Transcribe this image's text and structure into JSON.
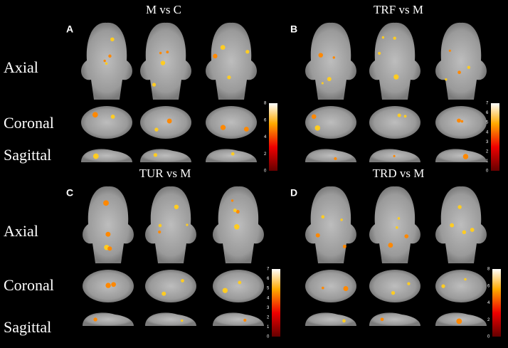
{
  "panels": [
    {
      "label": "A",
      "title": "M vs C",
      "colorbar_ticks": [
        0,
        2,
        4,
        6,
        8
      ]
    },
    {
      "label": "B",
      "title": "TRF vs M",
      "colorbar_ticks": [
        0,
        1,
        2,
        3,
        4,
        5,
        6,
        7
      ]
    },
    {
      "label": "C",
      "title": "TUR vs M",
      "colorbar_ticks": [
        0,
        1,
        2,
        3,
        4,
        5,
        6,
        7
      ]
    },
    {
      "label": "D",
      "title": "TRD vs M",
      "colorbar_ticks": [
        0,
        2,
        4,
        6,
        8
      ]
    }
  ],
  "row_blocks": [
    {
      "rows": [
        "Axial",
        "Coronal",
        "Sagittal"
      ]
    },
    {
      "rows": [
        "Axial",
        "Coronal",
        "Sagittal"
      ]
    }
  ]
}
